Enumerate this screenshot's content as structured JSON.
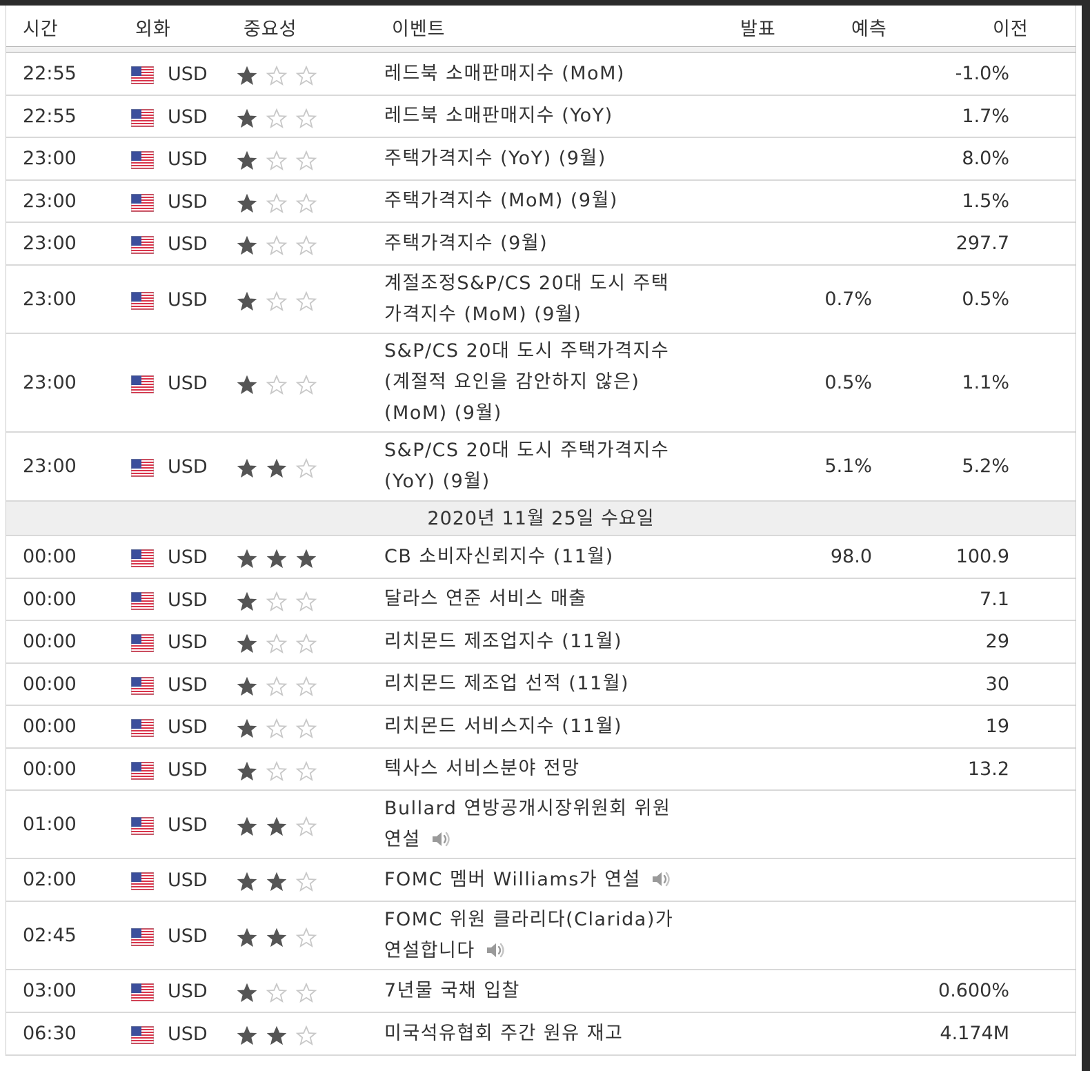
{
  "header": {
    "time": "시간",
    "currency": "외화",
    "importance": "중요성",
    "event": "이벤트",
    "actual": "발표",
    "forecast": "예측",
    "previous": "이전"
  },
  "colors": {
    "star_filled": "#555555",
    "star_empty": "#c8c8c8",
    "row_border": "#d9d9d9",
    "date_row_bg": "#efefef"
  },
  "date_separator": "2020년 11월 25일 수요일",
  "rows_before": [
    {
      "time": "22:55",
      "currency": "USD",
      "stars": 1,
      "event": "레드북 소매판매지수 (MoM)",
      "forecast": "",
      "previous": "-1.0%",
      "speech": false
    },
    {
      "time": "22:55",
      "currency": "USD",
      "stars": 1,
      "event": "레드북 소매판매지수 (YoY)",
      "forecast": "",
      "previous": "1.7%",
      "speech": false
    },
    {
      "time": "23:00",
      "currency": "USD",
      "stars": 1,
      "event": "주택가격지수 (YoY) (9월)",
      "forecast": "",
      "previous": "8.0%",
      "speech": false
    },
    {
      "time": "23:00",
      "currency": "USD",
      "stars": 1,
      "event": "주택가격지수 (MoM) (9월)",
      "forecast": "",
      "previous": "1.5%",
      "speech": false
    },
    {
      "time": "23:00",
      "currency": "USD",
      "stars": 1,
      "event": "주택가격지수 (9월)",
      "forecast": "",
      "previous": "297.7",
      "speech": false
    },
    {
      "time": "23:00",
      "currency": "USD",
      "stars": 1,
      "event": "계절조정S&P/CS 20대 도시 주택가격지수 (MoM) (9월)",
      "forecast": "0.7%",
      "previous": "0.5%",
      "speech": false
    },
    {
      "time": "23:00",
      "currency": "USD",
      "stars": 1,
      "event": "S&P/CS 20대 도시 주택가격지수(계절적 요인을 감안하지 않은) (MoM) (9월)",
      "forecast": "0.5%",
      "previous": "1.1%",
      "speech": false
    },
    {
      "time": "23:00",
      "currency": "USD",
      "stars": 2,
      "event": "S&P/CS 20대 도시 주택가격지수 (YoY) (9월)",
      "forecast": "5.1%",
      "previous": "5.2%",
      "speech": false
    }
  ],
  "rows_after": [
    {
      "time": "00:00",
      "currency": "USD",
      "stars": 3,
      "event": "CB 소비자신뢰지수 (11월)",
      "forecast": "98.0",
      "previous": "100.9",
      "speech": false
    },
    {
      "time": "00:00",
      "currency": "USD",
      "stars": 1,
      "event": "달라스 연준 서비스 매출",
      "forecast": "",
      "previous": "7.1",
      "speech": false
    },
    {
      "time": "00:00",
      "currency": "USD",
      "stars": 1,
      "event": "리치몬드 제조업지수 (11월)",
      "forecast": "",
      "previous": "29",
      "speech": false
    },
    {
      "time": "00:00",
      "currency": "USD",
      "stars": 1,
      "event": "리치몬드 제조업 선적 (11월)",
      "forecast": "",
      "previous": "30",
      "speech": false
    },
    {
      "time": "00:00",
      "currency": "USD",
      "stars": 1,
      "event": "리치몬드 서비스지수 (11월)",
      "forecast": "",
      "previous": "19",
      "speech": false
    },
    {
      "time": "00:00",
      "currency": "USD",
      "stars": 1,
      "event": "텍사스 서비스분야 전망",
      "forecast": "",
      "previous": "13.2",
      "speech": false
    },
    {
      "time": "01:00",
      "currency": "USD",
      "stars": 2,
      "event": "Bullard 연방공개시장위원회 위원 연설",
      "forecast": "",
      "previous": "",
      "speech": true
    },
    {
      "time": "02:00",
      "currency": "USD",
      "stars": 2,
      "event": "FOMC 멤버 Williams가 연설",
      "forecast": "",
      "previous": "",
      "speech": true
    },
    {
      "time": "02:45",
      "currency": "USD",
      "stars": 2,
      "event": "FOMC 위원 클라리다(Clarida)가 연설합니다",
      "forecast": "",
      "previous": "",
      "speech": true
    },
    {
      "time": "03:00",
      "currency": "USD",
      "stars": 1,
      "event": "7년물 국채 입찰",
      "forecast": "",
      "previous": "0.600%",
      "speech": false
    },
    {
      "time": "06:30",
      "currency": "USD",
      "stars": 2,
      "event": "미국석유협회 주간 원유 재고",
      "forecast": "",
      "previous": "4.174M",
      "speech": false
    }
  ]
}
